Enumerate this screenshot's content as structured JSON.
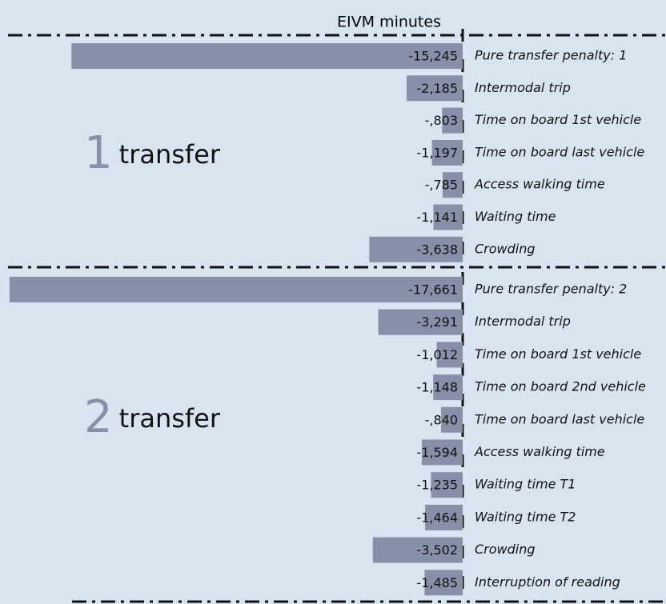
{
  "chart_data": [
    {
      "type": "bar",
      "x_label": "EIVM minutes",
      "group_number": "1",
      "group_label": "transfer",
      "color": "#8790a8",
      "xlim": [
        -18,
        0
      ],
      "categories": [
        "Pure transfer penalty: 1",
        "Intermodal trip",
        "Time on board 1st vehicle",
        "Time on board last vehicle",
        "Access walking time",
        "Waiting time",
        "Crowding"
      ],
      "values": [
        -15.245,
        -2.185,
        -0.803,
        -1.197,
        -0.785,
        -1.141,
        -3.638
      ],
      "value_labels": [
        "-15,245",
        "-2,185",
        "-,803",
        "-1,197",
        "-,785",
        "-1,141",
        "-3,638"
      ]
    },
    {
      "type": "bar",
      "group_number": "2",
      "group_label": "transfer",
      "color": "#8790a8",
      "xlim": [
        -18,
        0
      ],
      "categories": [
        "Pure transfer penalty: 2",
        "Intermodal trip",
        "Time on board 1st vehicle",
        "Time on board 2nd vehicle",
        "Time on board last vehicle",
        "Access walking time",
        "Waiting time T1",
        "Waiting time T2",
        "Crowding",
        "Interruption of reading"
      ],
      "values": [
        -17.661,
        -3.291,
        -1.012,
        -1.148,
        -0.84,
        -1.594,
        -1.235,
        -1.464,
        -3.502,
        -1.485
      ],
      "value_labels": [
        "-17,661",
        "-3,291",
        "-1,012",
        "-1,148",
        "-,840",
        "-1,594",
        "-1,235",
        "-1,464",
        "-3,502",
        "-1,485"
      ]
    }
  ]
}
